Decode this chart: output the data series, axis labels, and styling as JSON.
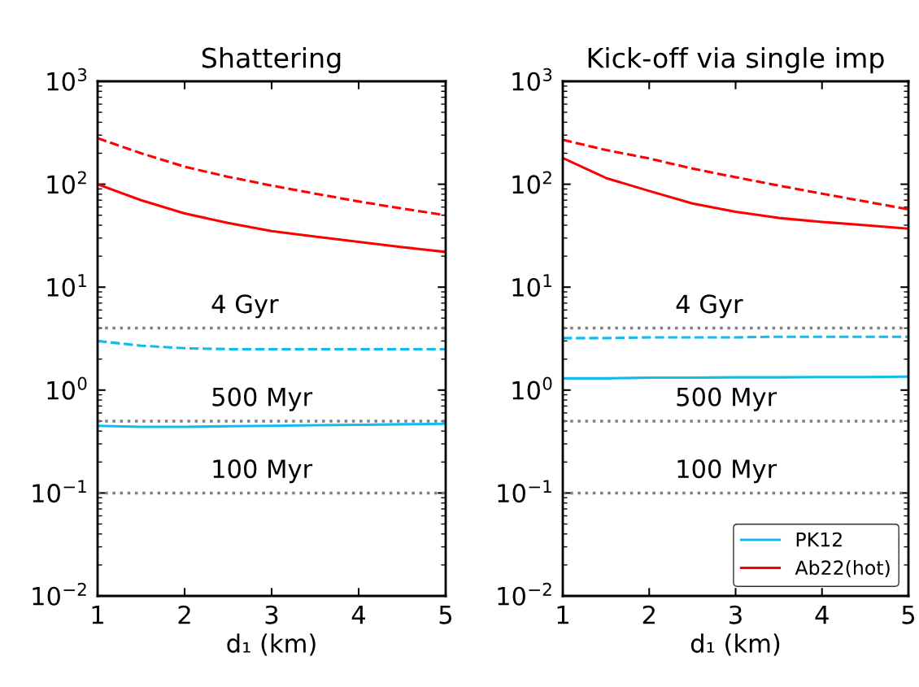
{
  "chart_data": [
    {
      "type": "line",
      "title": "Shattering",
      "xlabel": "d₁ (km)",
      "x": [
        1,
        1.5,
        2,
        2.5,
        3,
        3.5,
        4,
        4.5,
        5
      ],
      "series": [
        {
          "color": "#ff0000",
          "line_style": "dashed",
          "values": [
            280,
            200,
            148,
            118,
            97,
            81,
            68,
            58,
            50
          ]
        },
        {
          "color": "#ff0000",
          "line_style": "solid",
          "values": [
            100,
            70,
            52,
            42,
            35,
            31,
            27.5,
            24.5,
            22
          ]
        },
        {
          "color": "#11bbee",
          "line_style": "dashed",
          "values": [
            3.0,
            2.7,
            2.55,
            2.5,
            2.5,
            2.5,
            2.5,
            2.5,
            2.5
          ]
        },
        {
          "color": "#11bbee",
          "line_style": "solid",
          "values": [
            0.45,
            0.44,
            0.44,
            0.445,
            0.45,
            0.455,
            0.46,
            0.465,
            0.47
          ]
        }
      ],
      "log": "y",
      "xlim": [
        1,
        5
      ],
      "ylim": [
        0.01,
        1000
      ],
      "xticks": [
        1,
        2,
        3,
        4,
        5
      ],
      "yticks": [
        {
          "value": 0.01,
          "label": "10$^{−2}$"
        },
        {
          "value": 0.1,
          "label": "10$^{−1}$"
        },
        {
          "value": 1,
          "label": "10$^{0}$"
        },
        {
          "value": 10,
          "label": "10$^{1}$"
        },
        {
          "value": 100,
          "label": "10$^{2}$"
        },
        {
          "value": 1000,
          "label": "10$^{3}$"
        }
      ],
      "ref_lines": [
        {
          "axis": "y",
          "value": 4,
          "label": "4 Gyr",
          "color": "#808080",
          "line_style": "dotted"
        },
        {
          "axis": "y",
          "value": 0.5,
          "label": "500 Myr",
          "color": "#808080",
          "line_style": "dotted"
        },
        {
          "axis": "y",
          "value": 0.1,
          "label": "100 Myr",
          "color": "#808080",
          "line_style": "dotted"
        }
      ],
      "grid": false,
      "legend": false
    },
    {
      "type": "line",
      "title": "Kick-off via single imp",
      "xlabel": "d₁ (km)",
      "x": [
        1,
        1.5,
        2,
        2.5,
        3,
        3.5,
        4,
        4.5,
        5
      ],
      "series": [
        {
          "color": "#ff0000",
          "line_style": "dashed",
          "values": [
            270,
            215,
            178,
            142,
            117,
            97,
            81,
            68,
            57
          ]
        },
        {
          "color": "#ff0000",
          "line_style": "solid",
          "name": "Ab22(hot)",
          "values": [
            180,
            115,
            86,
            65,
            54,
            47,
            43,
            40,
            37
          ]
        },
        {
          "color": "#11bbee",
          "line_style": "dashed",
          "values": [
            3.2,
            3.2,
            3.25,
            3.25,
            3.25,
            3.3,
            3.3,
            3.3,
            3.3
          ]
        },
        {
          "color": "#11bbee",
          "line_style": "solid",
          "name": "PK12",
          "values": [
            1.3,
            1.3,
            1.32,
            1.32,
            1.33,
            1.33,
            1.34,
            1.34,
            1.35
          ]
        }
      ],
      "log": "y",
      "xlim": [
        1,
        5
      ],
      "ylim": [
        0.01,
        1000
      ],
      "xticks": [
        1,
        2,
        3,
        4,
        5
      ],
      "yticks": [
        {
          "value": 0.01,
          "label": "10$^{−2}$"
        },
        {
          "value": 0.1,
          "label": "10$^{−1}$"
        },
        {
          "value": 1,
          "label": "10$^{0}$"
        },
        {
          "value": 10,
          "label": "10$^{1}$"
        },
        {
          "value": 100,
          "label": "10$^{2}$"
        },
        {
          "value": 1000,
          "label": "10$^{3}$"
        }
      ],
      "ref_lines": [
        {
          "axis": "y",
          "value": 4,
          "label": "4 Gyr",
          "color": "#808080",
          "line_style": "dotted"
        },
        {
          "axis": "y",
          "value": 0.5,
          "label": "500 Myr",
          "color": "#808080",
          "line_style": "dotted"
        },
        {
          "axis": "y",
          "value": 0.1,
          "label": "100 Myr",
          "color": "#808080",
          "line_style": "dotted"
        }
      ],
      "grid": false,
      "legend": "bottom right"
    }
  ]
}
